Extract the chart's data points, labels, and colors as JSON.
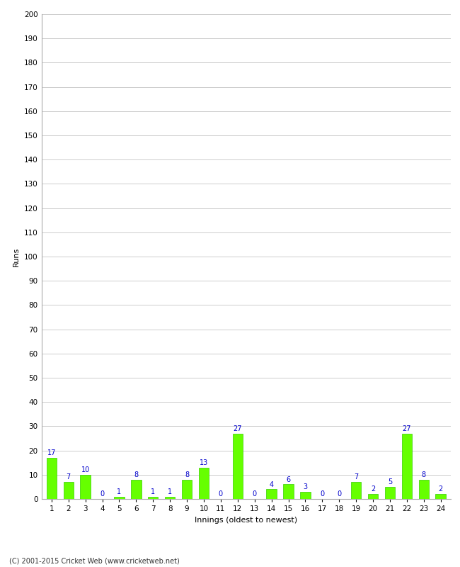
{
  "innings": [
    1,
    2,
    3,
    4,
    5,
    6,
    7,
    8,
    9,
    10,
    11,
    12,
    13,
    14,
    15,
    16,
    17,
    18,
    19,
    20,
    21,
    22,
    23,
    24
  ],
  "runs": [
    17,
    7,
    10,
    0,
    1,
    8,
    1,
    1,
    8,
    13,
    0,
    27,
    0,
    4,
    6,
    3,
    0,
    0,
    7,
    2,
    5,
    27,
    8,
    2
  ],
  "bar_color": "#66ff00",
  "bar_edge_color": "#33cc00",
  "label_color": "#0000cc",
  "xlabel": "Innings (oldest to newest)",
  "ylabel": "Runs",
  "ylim": [
    0,
    200
  ],
  "yticks": [
    0,
    10,
    20,
    30,
    40,
    50,
    60,
    70,
    80,
    90,
    100,
    110,
    120,
    130,
    140,
    150,
    160,
    170,
    180,
    190,
    200
  ],
  "background_color": "#ffffff",
  "grid_color": "#cccccc",
  "footer": "(C) 2001-2015 Cricket Web (www.cricketweb.net)",
  "axis_label_fontsize": 8,
  "tick_fontsize": 7.5,
  "bar_label_fontsize": 7,
  "footer_fontsize": 7
}
